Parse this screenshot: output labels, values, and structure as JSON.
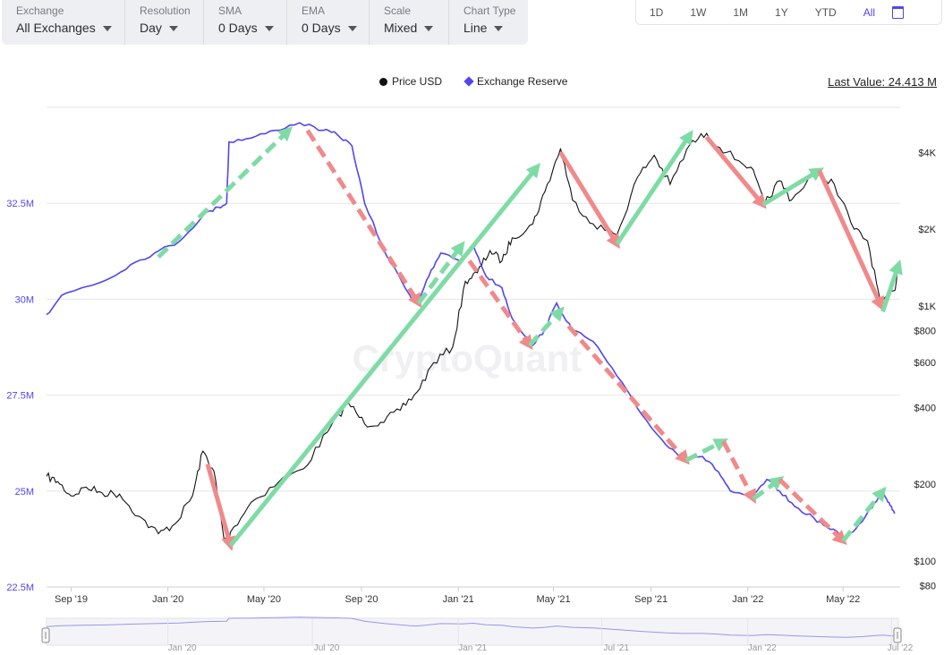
{
  "toolbar": {
    "exchange": {
      "label": "Exchange",
      "value": "All Exchanges"
    },
    "resolution": {
      "label": "Resolution",
      "value": "Day"
    },
    "sma": {
      "label": "SMA",
      "value": "0 Days"
    },
    "ema": {
      "label": "EMA",
      "value": "0 Days"
    },
    "scale": {
      "label": "Scale",
      "value": "Mixed"
    },
    "chart_type": {
      "label": "Chart Type",
      "value": "Line"
    }
  },
  "range_buttons": [
    "1D",
    "1W",
    "1M",
    "1Y",
    "YTD",
    "All"
  ],
  "active_range": "All",
  "watermark": "CryptoQuant",
  "last_value": "Last Value: 24.413 M",
  "colors": {
    "reserve": "#5146f0",
    "price": "#111111",
    "up": "#7fdba5",
    "down": "#f08a8a"
  },
  "chart_data": {
    "type": "line",
    "legend": [
      "Price USD",
      "Exchange Reserve"
    ],
    "x_ticks": [
      "Sep '19",
      "Jan '20",
      "May '20",
      "Sep '20",
      "Jan '21",
      "May '21",
      "Sep '21",
      "Jan '22",
      "May '22"
    ],
    "y_left_ticks": [
      "32.5M",
      "30M",
      "27.5M",
      "25M",
      "22.5M"
    ],
    "y_left_range": [
      22.5,
      35.0
    ],
    "y_right_ticks": [
      "$4K",
      "$2K",
      "$1K",
      "$800",
      "$600",
      "$400",
      "$200",
      "$100",
      "$80"
    ],
    "y_right_scale": "log",
    "navigator_ticks": [
      "Jan '20",
      "Jul '20",
      "Jan '21",
      "Jul '21",
      "Jan '22",
      "Jul '22"
    ],
    "series": [
      {
        "name": "Exchange Reserve",
        "unit": "M",
        "points": [
          [
            "2019-08-01",
            29.6
          ],
          [
            "2019-08-20",
            30.1
          ],
          [
            "2019-09-15",
            30.3
          ],
          [
            "2019-10-15",
            30.5
          ],
          [
            "2019-11-15",
            30.9
          ],
          [
            "2019-12-15",
            31.2
          ],
          [
            "2020-01-15",
            31.5
          ],
          [
            "2020-02-15",
            32.2
          ],
          [
            "2020-03-05",
            32.4
          ],
          [
            "2020-03-15",
            32.5
          ],
          [
            "2020-03-18",
            34.1
          ],
          [
            "2020-04-15",
            34.2
          ],
          [
            "2020-05-15",
            34.4
          ],
          [
            "2020-06-15",
            34.6
          ],
          [
            "2020-07-15",
            34.4
          ],
          [
            "2020-08-01",
            34.3
          ],
          [
            "2020-08-20",
            34.0
          ],
          [
            "2020-09-05",
            32.5
          ],
          [
            "2020-10-01",
            31.2
          ],
          [
            "2020-11-01",
            30.1
          ],
          [
            "2020-11-10",
            29.9
          ],
          [
            "2020-11-25",
            30.6
          ],
          [
            "2020-12-10",
            31.2
          ],
          [
            "2021-01-05",
            31.0
          ],
          [
            "2021-01-20",
            31.4
          ],
          [
            "2021-02-05",
            30.6
          ],
          [
            "2021-02-25",
            30.3
          ],
          [
            "2021-03-10",
            29.5
          ],
          [
            "2021-04-05",
            28.8
          ],
          [
            "2021-04-20",
            29.2
          ],
          [
            "2021-05-05",
            29.9
          ],
          [
            "2021-05-25",
            29.2
          ],
          [
            "2021-06-20",
            28.9
          ],
          [
            "2021-07-20",
            28.0
          ],
          [
            "2021-08-20",
            27.0
          ],
          [
            "2021-09-20",
            26.2
          ],
          [
            "2021-10-10",
            25.9
          ],
          [
            "2021-11-05",
            25.9
          ],
          [
            "2021-11-25",
            25.5
          ],
          [
            "2021-12-10",
            25.0
          ],
          [
            "2022-01-05",
            24.8
          ],
          [
            "2022-01-25",
            25.3
          ],
          [
            "2022-02-10",
            25.0
          ],
          [
            "2022-03-01",
            24.6
          ],
          [
            "2022-03-25",
            24.3
          ],
          [
            "2022-04-15",
            24.0
          ],
          [
            "2022-05-05",
            23.8
          ],
          [
            "2022-05-25",
            24.2
          ],
          [
            "2022-06-10",
            24.7
          ],
          [
            "2022-06-20",
            25.0
          ],
          [
            "2022-06-28",
            24.7
          ],
          [
            "2022-07-05",
            24.413
          ]
        ]
      },
      {
        "name": "Price USD",
        "unit": "USD",
        "points": [
          [
            "2019-08-01",
            215
          ],
          [
            "2019-08-15",
            205
          ],
          [
            "2019-09-01",
            180
          ],
          [
            "2019-09-20",
            195
          ],
          [
            "2019-10-10",
            185
          ],
          [
            "2019-11-01",
            183
          ],
          [
            "2019-11-25",
            150
          ],
          [
            "2019-12-20",
            128
          ],
          [
            "2020-01-10",
            140
          ],
          [
            "2020-02-01",
            180
          ],
          [
            "2020-02-14",
            270
          ],
          [
            "2020-02-28",
            225
          ],
          [
            "2020-03-12",
            120
          ],
          [
            "2020-03-20",
            130
          ],
          [
            "2020-04-15",
            170
          ],
          [
            "2020-05-20",
            205
          ],
          [
            "2020-06-20",
            230
          ],
          [
            "2020-07-20",
            320
          ],
          [
            "2020-08-15",
            420
          ],
          [
            "2020-09-05",
            345
          ],
          [
            "2020-09-25",
            350
          ],
          [
            "2020-10-20",
            390
          ],
          [
            "2020-11-10",
            460
          ],
          [
            "2020-12-01",
            600
          ],
          [
            "2020-12-25",
            690
          ],
          [
            "2021-01-10",
            1250
          ],
          [
            "2021-01-25",
            1350
          ],
          [
            "2021-02-10",
            1650
          ],
          [
            "2021-02-25",
            1500
          ],
          [
            "2021-03-10",
            1850
          ],
          [
            "2021-04-05",
            2100
          ],
          [
            "2021-04-20",
            2800
          ],
          [
            "2021-05-10",
            4150
          ],
          [
            "2021-05-25",
            2600
          ],
          [
            "2021-06-20",
            2100
          ],
          [
            "2021-07-20",
            1900
          ],
          [
            "2021-08-15",
            3200
          ],
          [
            "2021-09-05",
            3900
          ],
          [
            "2021-09-25",
            3000
          ],
          [
            "2021-10-20",
            4300
          ],
          [
            "2021-11-10",
            4750
          ],
          [
            "2021-12-05",
            4000
          ],
          [
            "2022-01-05",
            3500
          ],
          [
            "2022-01-22",
            2500
          ],
          [
            "2022-02-10",
            3100
          ],
          [
            "2022-02-25",
            2600
          ],
          [
            "2022-03-28",
            3400
          ],
          [
            "2022-04-20",
            3000
          ],
          [
            "2022-05-15",
            2000
          ],
          [
            "2022-06-01",
            1800
          ],
          [
            "2022-06-18",
            1000
          ],
          [
            "2022-07-05",
            1150
          ],
          [
            "2022-07-10",
            1450
          ]
        ]
      }
    ],
    "annotations": [
      {
        "dir": "up",
        "style": "dashed",
        "from": [
          "2019-12-20",
          31.1
        ],
        "to": [
          "2020-06-01",
          34.4
        ]
      },
      {
        "dir": "down",
        "style": "dashed",
        "from": [
          "2020-06-25",
          34.4
        ],
        "to": [
          "2020-11-12",
          29.9
        ]
      },
      {
        "dir": "up",
        "style": "dashed",
        "from": [
          "2020-11-12",
          29.9
        ],
        "to": [
          "2021-01-05",
          31.4
        ]
      },
      {
        "dir": "down",
        "style": "dashed",
        "from": [
          "2021-01-15",
          31.0
        ],
        "to": [
          "2021-04-01",
          28.8
        ]
      },
      {
        "dir": "up",
        "style": "dashed",
        "from": [
          "2021-04-01",
          28.8
        ],
        "to": [
          "2021-05-10",
          29.7
        ]
      },
      {
        "dir": "down",
        "style": "dashed",
        "from": [
          "2021-05-20",
          29.3
        ],
        "to": [
          "2021-10-15",
          25.8
        ]
      },
      {
        "dir": "up",
        "style": "dashed",
        "from": [
          "2021-10-15",
          25.8
        ],
        "to": [
          "2021-12-01",
          26.3
        ]
      },
      {
        "dir": "down",
        "style": "dashed",
        "from": [
          "2021-12-01",
          26.3
        ],
        "to": [
          "2022-01-08",
          24.8
        ]
      },
      {
        "dir": "up",
        "style": "dashed",
        "from": [
          "2022-01-08",
          24.8
        ],
        "to": [
          "2022-02-10",
          25.3
        ]
      },
      {
        "dir": "down",
        "style": "dashed",
        "from": [
          "2022-02-10",
          25.3
        ],
        "to": [
          "2022-05-01",
          23.7
        ]
      },
      {
        "dir": "up",
        "style": "dashed",
        "from": [
          "2022-05-01",
          23.7
        ],
        "to": [
          "2022-06-20",
          25.0
        ]
      },
      {
        "dir": "down",
        "style": "solid",
        "from": [
          "2020-02-20",
          240
        ],
        "to": [
          "2020-03-20",
          115
        ]
      },
      {
        "dir": "up",
        "style": "solid",
        "from": [
          "2020-03-20",
          115
        ],
        "to": [
          "2021-04-10",
          3500
        ]
      },
      {
        "dir": "down",
        "style": "solid",
        "from": [
          "2021-05-10",
          4000
        ],
        "to": [
          "2021-07-20",
          1750
        ]
      },
      {
        "dir": "up",
        "style": "solid",
        "from": [
          "2021-07-20",
          1750
        ],
        "to": [
          "2021-10-20",
          4700
        ]
      },
      {
        "dir": "down",
        "style": "solid",
        "from": [
          "2021-11-10",
          4600
        ],
        "to": [
          "2022-01-20",
          2500
        ]
      },
      {
        "dir": "up",
        "style": "solid",
        "from": [
          "2022-01-20",
          2500
        ],
        "to": [
          "2022-04-01",
          3400
        ]
      },
      {
        "dir": "down",
        "style": "solid",
        "from": [
          "2022-04-01",
          3400
        ],
        "to": [
          "2022-06-18",
          1000
        ]
      },
      {
        "dir": "up",
        "style": "solid",
        "from": [
          "2022-06-20",
          950
        ],
        "to": [
          "2022-07-10",
          1450
        ]
      }
    ]
  }
}
